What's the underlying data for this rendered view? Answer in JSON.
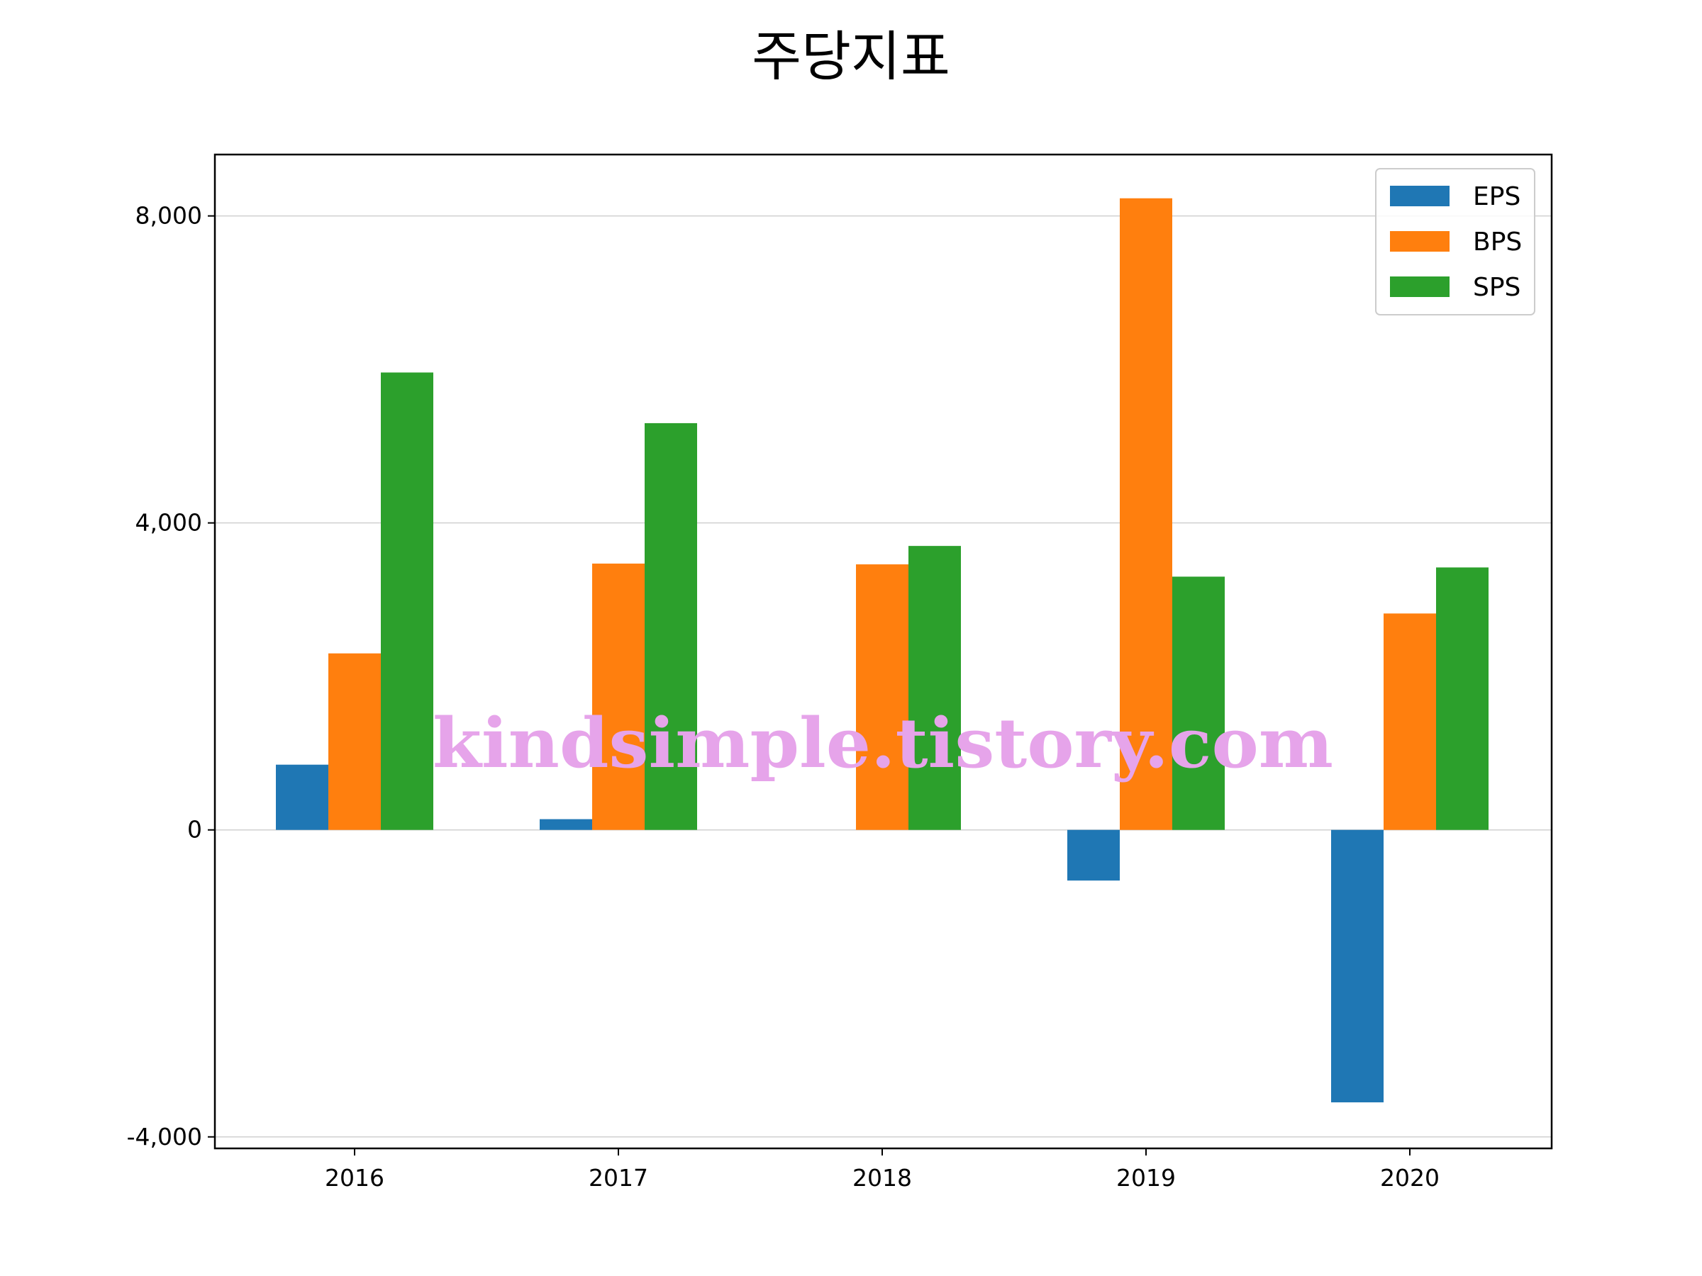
{
  "chart_data": {
    "type": "bar",
    "title": "주당지표",
    "xlabel": "",
    "ylabel": "",
    "categories": [
      "2016",
      "2017",
      "2018",
      "2019",
      "2020"
    ],
    "series": [
      {
        "name": "EPS",
        "color": "#1f77b4",
        "values": [
          850,
          140,
          0,
          -660,
          -3550
        ]
      },
      {
        "name": "BPS",
        "color": "#ff7f0e",
        "values": [
          2300,
          3470,
          3460,
          8230,
          2820
        ]
      },
      {
        "name": "SPS",
        "color": "#2ca02c",
        "values": [
          5960,
          5300,
          3700,
          3300,
          3420
        ]
      }
    ],
    "yticks": [
      -4000,
      0,
      4000,
      8000
    ],
    "ytick_labels": [
      "-4,000",
      "0",
      "4,000",
      "8,000"
    ],
    "ylim": [
      -4150,
      8800
    ],
    "grid": "horizontal",
    "legend_position": "top-right",
    "watermark": "kindsimple.tistory.com"
  }
}
